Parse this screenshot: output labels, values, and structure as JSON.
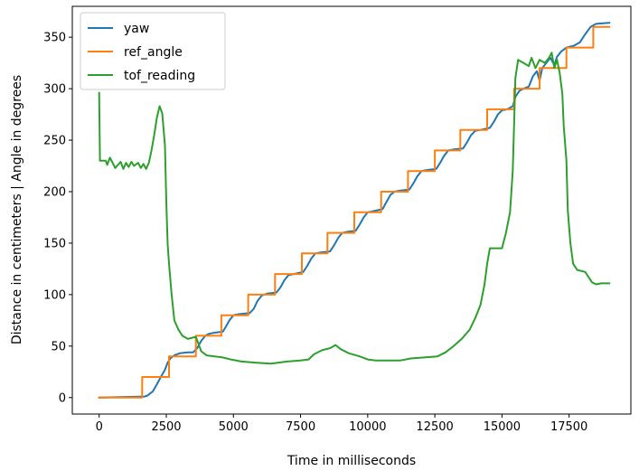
{
  "chart_data": {
    "type": "line",
    "xlabel": "Time in milliseconds",
    "ylabel": "Distance in centimeters | Angle in degrees",
    "xlim": [
      -1000,
      19800
    ],
    "ylim": [
      -16,
      380
    ],
    "xticks": [
      0,
      2500,
      5000,
      7500,
      10000,
      12500,
      15000,
      17500
    ],
    "yticks": [
      0,
      50,
      100,
      150,
      200,
      250,
      300,
      350
    ],
    "grid": false,
    "legend": "top-left",
    "series": [
      {
        "name": "yaw",
        "color": "#1f77b4",
        "points": [
          [
            0,
            0
          ],
          [
            1700,
            1
          ],
          [
            1800,
            2
          ],
          [
            2000,
            6
          ],
          [
            2150,
            13
          ],
          [
            2300,
            20
          ],
          [
            2450,
            27
          ],
          [
            2550,
            34
          ],
          [
            2650,
            38
          ],
          [
            2800,
            41
          ],
          [
            3000,
            43
          ],
          [
            3300,
            44
          ],
          [
            3500,
            44
          ],
          [
            3650,
            48
          ],
          [
            3800,
            55
          ],
          [
            3950,
            60
          ],
          [
            4100,
            62
          ],
          [
            4300,
            63
          ],
          [
            4600,
            64
          ],
          [
            4700,
            68
          ],
          [
            4850,
            75
          ],
          [
            5000,
            80
          ],
          [
            5200,
            81
          ],
          [
            5600,
            82
          ],
          [
            5750,
            86
          ],
          [
            5900,
            94
          ],
          [
            6050,
            99
          ],
          [
            6250,
            101
          ],
          [
            6600,
            102
          ],
          [
            6750,
            107
          ],
          [
            6900,
            114
          ],
          [
            7050,
            119
          ],
          [
            7250,
            120
          ],
          [
            7600,
            122
          ],
          [
            7750,
            128
          ],
          [
            7900,
            135
          ],
          [
            8050,
            140
          ],
          [
            8250,
            141
          ],
          [
            8600,
            142
          ],
          [
            8750,
            148
          ],
          [
            8900,
            155
          ],
          [
            9050,
            160
          ],
          [
            9250,
            161
          ],
          [
            9550,
            162
          ],
          [
            9700,
            168
          ],
          [
            9850,
            175
          ],
          [
            10000,
            180
          ],
          [
            10200,
            181
          ],
          [
            10550,
            183
          ],
          [
            10700,
            190
          ],
          [
            10850,
            197
          ],
          [
            11000,
            200
          ],
          [
            11200,
            201
          ],
          [
            11550,
            202
          ],
          [
            11700,
            208
          ],
          [
            11850,
            215
          ],
          [
            12000,
            220
          ],
          [
            12200,
            221
          ],
          [
            12550,
            222
          ],
          [
            12700,
            228
          ],
          [
            12850,
            235
          ],
          [
            13000,
            240
          ],
          [
            13200,
            241
          ],
          [
            13550,
            242
          ],
          [
            13700,
            248
          ],
          [
            13850,
            255
          ],
          [
            14000,
            259
          ],
          [
            14200,
            260
          ],
          [
            14550,
            262
          ],
          [
            14700,
            268
          ],
          [
            14850,
            275
          ],
          [
            15000,
            279
          ],
          [
            15200,
            280
          ],
          [
            15400,
            283
          ],
          [
            15500,
            292
          ],
          [
            15650,
            298
          ],
          [
            15800,
            300
          ],
          [
            16000,
            302
          ],
          [
            16150,
            312
          ],
          [
            16300,
            317
          ],
          [
            16400,
            308
          ],
          [
            16500,
            320
          ],
          [
            16650,
            325
          ],
          [
            16800,
            330
          ],
          [
            16950,
            323
          ],
          [
            17050,
            331
          ],
          [
            17200,
            336
          ],
          [
            17400,
            340
          ],
          [
            17700,
            342
          ],
          [
            17900,
            345
          ],
          [
            18100,
            353
          ],
          [
            18300,
            360
          ],
          [
            18500,
            363
          ],
          [
            19000,
            364
          ]
        ]
      },
      {
        "name": "ref_angle",
        "color": "#ff7f0e",
        "points": [
          [
            0,
            0
          ],
          [
            1600,
            0
          ],
          [
            1600,
            20
          ],
          [
            2600,
            20
          ],
          [
            2600,
            40
          ],
          [
            3600,
            40
          ],
          [
            3600,
            60
          ],
          [
            4550,
            60
          ],
          [
            4550,
            80
          ],
          [
            5550,
            80
          ],
          [
            5550,
            100
          ],
          [
            6550,
            100
          ],
          [
            6550,
            120
          ],
          [
            7550,
            120
          ],
          [
            7550,
            140
          ],
          [
            8500,
            140
          ],
          [
            8500,
            160
          ],
          [
            9500,
            160
          ],
          [
            9500,
            180
          ],
          [
            10500,
            180
          ],
          [
            10500,
            200
          ],
          [
            11500,
            200
          ],
          [
            11500,
            220
          ],
          [
            12500,
            220
          ],
          [
            12500,
            240
          ],
          [
            13450,
            240
          ],
          [
            13450,
            260
          ],
          [
            14450,
            260
          ],
          [
            14450,
            280
          ],
          [
            15450,
            280
          ],
          [
            15450,
            300
          ],
          [
            16400,
            300
          ],
          [
            16400,
            320
          ],
          [
            17400,
            320
          ],
          [
            17400,
            340
          ],
          [
            18400,
            340
          ],
          [
            18400,
            360
          ],
          [
            19000,
            360
          ]
        ]
      },
      {
        "name": "tof_reading",
        "color": "#2ca02c",
        "points": [
          [
            0,
            296
          ],
          [
            30,
            230
          ],
          [
            250,
            230
          ],
          [
            300,
            226
          ],
          [
            400,
            233
          ],
          [
            500,
            228
          ],
          [
            600,
            223
          ],
          [
            800,
            229
          ],
          [
            900,
            222
          ],
          [
            1000,
            228
          ],
          [
            1100,
            224
          ],
          [
            1200,
            229
          ],
          [
            1300,
            225
          ],
          [
            1450,
            228
          ],
          [
            1550,
            223
          ],
          [
            1650,
            227
          ],
          [
            1750,
            222
          ],
          [
            1850,
            228
          ],
          [
            1950,
            240
          ],
          [
            2050,
            255
          ],
          [
            2150,
            272
          ],
          [
            2250,
            283
          ],
          [
            2350,
            276
          ],
          [
            2450,
            245
          ],
          [
            2500,
            190
          ],
          [
            2550,
            149
          ],
          [
            2600,
            130
          ],
          [
            2700,
            100
          ],
          [
            2800,
            75
          ],
          [
            2950,
            66
          ],
          [
            3100,
            60
          ],
          [
            3300,
            57
          ],
          [
            3600,
            59
          ],
          [
            3800,
            45
          ],
          [
            4000,
            41
          ],
          [
            4300,
            40
          ],
          [
            4600,
            39
          ],
          [
            4900,
            37
          ],
          [
            5300,
            35
          ],
          [
            5800,
            34
          ],
          [
            6400,
            33
          ],
          [
            7000,
            35
          ],
          [
            7500,
            36
          ],
          [
            7800,
            37
          ],
          [
            8000,
            42
          ],
          [
            8300,
            46
          ],
          [
            8600,
            48
          ],
          [
            8800,
            51
          ],
          [
            9000,
            47
          ],
          [
            9300,
            43
          ],
          [
            9700,
            40
          ],
          [
            10000,
            37
          ],
          [
            10300,
            36
          ],
          [
            11200,
            36
          ],
          [
            11600,
            38
          ],
          [
            12100,
            39
          ],
          [
            12600,
            40
          ],
          [
            12900,
            44
          ],
          [
            13200,
            50
          ],
          [
            13500,
            57
          ],
          [
            13800,
            66
          ],
          [
            14000,
            77
          ],
          [
            14200,
            90
          ],
          [
            14350,
            110
          ],
          [
            14450,
            130
          ],
          [
            14550,
            145
          ],
          [
            15000,
            145
          ],
          [
            15150,
            160
          ],
          [
            15300,
            180
          ],
          [
            15400,
            220
          ],
          [
            15450,
            265
          ],
          [
            15500,
            310
          ],
          [
            15600,
            328
          ],
          [
            15800,
            325
          ],
          [
            16000,
            322
          ],
          [
            16100,
            330
          ],
          [
            16250,
            320
          ],
          [
            16400,
            328
          ],
          [
            16600,
            325
          ],
          [
            16750,
            330
          ],
          [
            16850,
            335
          ],
          [
            16950,
            320
          ],
          [
            17050,
            328
          ],
          [
            17150,
            315
          ],
          [
            17250,
            295
          ],
          [
            17300,
            264
          ],
          [
            17400,
            230
          ],
          [
            17450,
            182
          ],
          [
            17550,
            150
          ],
          [
            17650,
            130
          ],
          [
            17800,
            124
          ],
          [
            18100,
            122
          ],
          [
            18200,
            118
          ],
          [
            18350,
            112
          ],
          [
            18500,
            110
          ],
          [
            18700,
            111
          ],
          [
            19000,
            111
          ]
        ]
      }
    ]
  }
}
